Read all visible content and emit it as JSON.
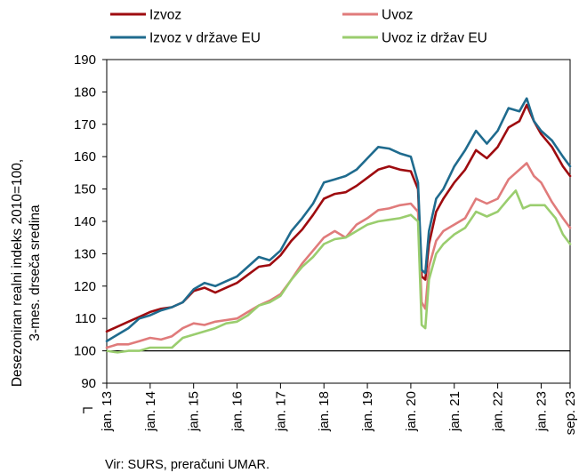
{
  "chart_data": {
    "type": "line",
    "ylabel_lines": [
      "Desezoniran realni indeks 2010=100,",
      "3-mes. drseča sredina"
    ],
    "ylim": [
      90,
      190
    ],
    "yticks": [
      90,
      100,
      110,
      120,
      130,
      140,
      150,
      160,
      170,
      180,
      190
    ],
    "xlim": [
      "2013-01",
      "2023-09"
    ],
    "xticks": [
      "jan. 13",
      "jan. 14",
      "jan. 15",
      "jan. 16",
      "jan. 17",
      "jan. 18",
      "jan. 19",
      "jan. 20",
      "jan. 21",
      "jan. 22",
      "jan. 23",
      "sep. 23"
    ],
    "axis_break": true,
    "reference_line": 100,
    "legend_position": "top",
    "source": "Vir: SURS, preračuni UMAR.",
    "series": [
      {
        "name": "Izvoz",
        "color": "#9e0b0f",
        "points": [
          [
            "2013-01",
            106
          ],
          [
            "2013-04",
            107.5
          ],
          [
            "2013-07",
            109
          ],
          [
            "2013-10",
            110.5
          ],
          [
            "2014-01",
            112
          ],
          [
            "2014-04",
            113
          ],
          [
            "2014-07",
            113.5
          ],
          [
            "2014-10",
            115
          ],
          [
            "2015-01",
            118.5
          ],
          [
            "2015-04",
            119.5
          ],
          [
            "2015-07",
            118
          ],
          [
            "2015-10",
            119.5
          ],
          [
            "2016-01",
            121
          ],
          [
            "2016-04",
            123.5
          ],
          [
            "2016-07",
            126
          ],
          [
            "2016-10",
            126.5
          ],
          [
            "2017-01",
            129.5
          ],
          [
            "2017-04",
            134
          ],
          [
            "2017-07",
            137.5
          ],
          [
            "2017-10",
            142
          ],
          [
            "2018-01",
            147
          ],
          [
            "2018-04",
            148.5
          ],
          [
            "2018-07",
            149
          ],
          [
            "2018-10",
            151
          ],
          [
            "2019-01",
            153.5
          ],
          [
            "2019-04",
            156
          ],
          [
            "2019-07",
            157
          ],
          [
            "2019-10",
            156
          ],
          [
            "2020-01",
            155.5
          ],
          [
            "2020-03",
            150
          ],
          [
            "2020-04",
            123
          ],
          [
            "2020-05",
            122
          ],
          [
            "2020-06",
            133
          ],
          [
            "2020-08",
            143
          ],
          [
            "2020-10",
            147
          ],
          [
            "2021-01",
            152
          ],
          [
            "2021-04",
            156
          ],
          [
            "2021-07",
            162
          ],
          [
            "2021-10",
            159.5
          ],
          [
            "2022-01",
            163
          ],
          [
            "2022-04",
            169
          ],
          [
            "2022-07",
            171
          ],
          [
            "2022-09",
            176
          ],
          [
            "2022-11",
            171
          ],
          [
            "2023-01",
            167
          ],
          [
            "2023-04",
            163
          ],
          [
            "2023-07",
            157
          ],
          [
            "2023-09",
            154
          ]
        ]
      },
      {
        "name": "Uvoz",
        "color": "#e07b7b",
        "points": [
          [
            "2013-01",
            101
          ],
          [
            "2013-04",
            102
          ],
          [
            "2013-07",
            102
          ],
          [
            "2013-10",
            103
          ],
          [
            "2014-01",
            104
          ],
          [
            "2014-04",
            103.5
          ],
          [
            "2014-07",
            104.5
          ],
          [
            "2014-10",
            107
          ],
          [
            "2015-01",
            108.5
          ],
          [
            "2015-04",
            108
          ],
          [
            "2015-07",
            109
          ],
          [
            "2015-10",
            109.5
          ],
          [
            "2016-01",
            110
          ],
          [
            "2016-04",
            112
          ],
          [
            "2016-07",
            114
          ],
          [
            "2016-10",
            115.5
          ],
          [
            "2017-01",
            117.5
          ],
          [
            "2017-04",
            122
          ],
          [
            "2017-07",
            127
          ],
          [
            "2017-10",
            131
          ],
          [
            "2018-01",
            135
          ],
          [
            "2018-04",
            137
          ],
          [
            "2018-07",
            135
          ],
          [
            "2018-10",
            139
          ],
          [
            "2019-01",
            141
          ],
          [
            "2019-04",
            143.5
          ],
          [
            "2019-07",
            144
          ],
          [
            "2019-10",
            145
          ],
          [
            "2020-01",
            145.5
          ],
          [
            "2020-03",
            143
          ],
          [
            "2020-04",
            115
          ],
          [
            "2020-05",
            113
          ],
          [
            "2020-06",
            126
          ],
          [
            "2020-08",
            134
          ],
          [
            "2020-10",
            137
          ],
          [
            "2021-01",
            139
          ],
          [
            "2021-04",
            141
          ],
          [
            "2021-07",
            147
          ],
          [
            "2021-10",
            145.5
          ],
          [
            "2022-01",
            147
          ],
          [
            "2022-04",
            153
          ],
          [
            "2022-07",
            156
          ],
          [
            "2022-09",
            158
          ],
          [
            "2022-11",
            154
          ],
          [
            "2023-01",
            152
          ],
          [
            "2023-04",
            146
          ],
          [
            "2023-07",
            141
          ],
          [
            "2023-09",
            138
          ]
        ]
      },
      {
        "name": "Izvoz v države EU",
        "color": "#1f6b8e",
        "points": [
          [
            "2013-01",
            103
          ],
          [
            "2013-04",
            105
          ],
          [
            "2013-07",
            107
          ],
          [
            "2013-10",
            110
          ],
          [
            "2014-01",
            111
          ],
          [
            "2014-04",
            112.5
          ],
          [
            "2014-07",
            113.5
          ],
          [
            "2014-10",
            115
          ],
          [
            "2015-01",
            119
          ],
          [
            "2015-04",
            121
          ],
          [
            "2015-07",
            120
          ],
          [
            "2015-10",
            121.5
          ],
          [
            "2016-01",
            123
          ],
          [
            "2016-04",
            126
          ],
          [
            "2016-07",
            129
          ],
          [
            "2016-10",
            128
          ],
          [
            "2017-01",
            131
          ],
          [
            "2017-04",
            137
          ],
          [
            "2017-07",
            141
          ],
          [
            "2017-10",
            145.5
          ],
          [
            "2018-01",
            152
          ],
          [
            "2018-04",
            153
          ],
          [
            "2018-07",
            154
          ],
          [
            "2018-10",
            156
          ],
          [
            "2019-01",
            159.5
          ],
          [
            "2019-04",
            163
          ],
          [
            "2019-07",
            162.5
          ],
          [
            "2019-10",
            161
          ],
          [
            "2020-01",
            160
          ],
          [
            "2020-03",
            152
          ],
          [
            "2020-04",
            125
          ],
          [
            "2020-05",
            124
          ],
          [
            "2020-06",
            137
          ],
          [
            "2020-08",
            147
          ],
          [
            "2020-10",
            150
          ],
          [
            "2021-01",
            157
          ],
          [
            "2021-04",
            162
          ],
          [
            "2021-07",
            168
          ],
          [
            "2021-10",
            164
          ],
          [
            "2022-01",
            168
          ],
          [
            "2022-04",
            175
          ],
          [
            "2022-07",
            174
          ],
          [
            "2022-09",
            178
          ],
          [
            "2022-11",
            171
          ],
          [
            "2023-01",
            168
          ],
          [
            "2023-04",
            165
          ],
          [
            "2023-07",
            160
          ],
          [
            "2023-09",
            157
          ]
        ]
      },
      {
        "name": "Uvoz iz držav EU",
        "color": "#9acd6e",
        "points": [
          [
            "2013-01",
            100
          ],
          [
            "2013-04",
            99.5
          ],
          [
            "2013-07",
            100
          ],
          [
            "2013-10",
            100
          ],
          [
            "2014-01",
            101
          ],
          [
            "2014-04",
            101
          ],
          [
            "2014-07",
            101
          ],
          [
            "2014-10",
            104
          ],
          [
            "2015-01",
            105
          ],
          [
            "2015-04",
            106
          ],
          [
            "2015-07",
            107
          ],
          [
            "2015-10",
            108.5
          ],
          [
            "2016-01",
            109
          ],
          [
            "2016-04",
            111
          ],
          [
            "2016-07",
            114
          ],
          [
            "2016-10",
            115
          ],
          [
            "2017-01",
            117
          ],
          [
            "2017-04",
            122
          ],
          [
            "2017-07",
            126
          ],
          [
            "2017-10",
            129
          ],
          [
            "2018-01",
            133
          ],
          [
            "2018-04",
            134.5
          ],
          [
            "2018-07",
            135
          ],
          [
            "2018-10",
            137
          ],
          [
            "2019-01",
            139
          ],
          [
            "2019-04",
            140
          ],
          [
            "2019-07",
            140.5
          ],
          [
            "2019-10",
            141
          ],
          [
            "2020-01",
            142
          ],
          [
            "2020-03",
            140
          ],
          [
            "2020-04",
            108
          ],
          [
            "2020-05",
            107
          ],
          [
            "2020-06",
            122
          ],
          [
            "2020-08",
            130
          ],
          [
            "2020-10",
            133
          ],
          [
            "2021-01",
            136
          ],
          [
            "2021-04",
            138
          ],
          [
            "2021-07",
            143
          ],
          [
            "2021-10",
            141.5
          ],
          [
            "2022-01",
            143
          ],
          [
            "2022-04",
            147
          ],
          [
            "2022-06",
            149.5
          ],
          [
            "2022-08",
            144
          ],
          [
            "2022-10",
            145
          ],
          [
            "2022-12",
            145
          ],
          [
            "2023-02",
            145
          ],
          [
            "2023-05",
            141
          ],
          [
            "2023-07",
            136
          ],
          [
            "2023-09",
            133
          ]
        ]
      }
    ]
  }
}
